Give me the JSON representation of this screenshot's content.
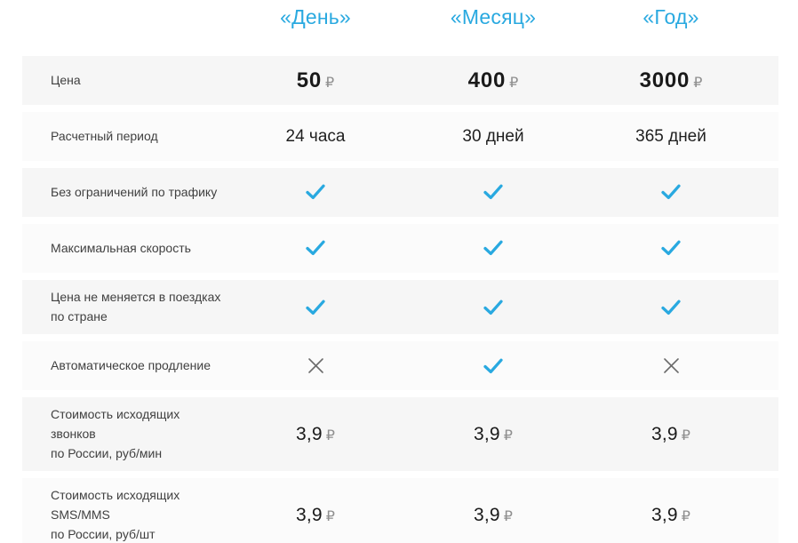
{
  "colors": {
    "page_bg": "#ffffff",
    "accent": "#29a9e0",
    "row_dark": "#f6f6f6",
    "row_light": "#fbfbfb",
    "label_text": "#404040",
    "value_text": "#1f1f1f",
    "price_text": "#1a1a1a",
    "currency_text": "#8f8f8f",
    "cross_color": "#6b6b6b"
  },
  "icons": {
    "check": "check-icon",
    "cross": "cross-icon"
  },
  "table": {
    "columns": [
      {
        "id": "day",
        "label": "«День»"
      },
      {
        "id": "month",
        "label": "«Месяц»"
      },
      {
        "id": "year",
        "label": "«Год»"
      }
    ],
    "rows": [
      {
        "id": "price",
        "label": "Цена",
        "cells": [
          {
            "kind": "price",
            "amount": "50",
            "currency": "₽"
          },
          {
            "kind": "price",
            "amount": "400",
            "currency": "₽"
          },
          {
            "kind": "price",
            "amount": "3000",
            "currency": "₽"
          }
        ]
      },
      {
        "id": "billing-period",
        "label": "Расчетный период",
        "cells": [
          {
            "kind": "text",
            "text": "24 часа"
          },
          {
            "kind": "text",
            "text": "30 дней"
          },
          {
            "kind": "text",
            "text": "365 дней"
          }
        ]
      },
      {
        "id": "unlimited-traffic",
        "label": "Без ограничений по трафику",
        "cells": [
          {
            "kind": "check"
          },
          {
            "kind": "check"
          },
          {
            "kind": "check"
          }
        ]
      },
      {
        "id": "max-speed",
        "label": "Максимальная скорость",
        "cells": [
          {
            "kind": "check"
          },
          {
            "kind": "check"
          },
          {
            "kind": "check"
          }
        ]
      },
      {
        "id": "fixed-price-travel",
        "label": "Цена не меняется в поездках\nпо стране",
        "cells": [
          {
            "kind": "check"
          },
          {
            "kind": "check"
          },
          {
            "kind": "check"
          }
        ]
      },
      {
        "id": "auto-renewal",
        "label": "Автоматическое продление",
        "cells": [
          {
            "kind": "cross"
          },
          {
            "kind": "check"
          },
          {
            "kind": "cross"
          }
        ]
      },
      {
        "id": "outgoing-calls-cost",
        "label": "Стоимость исходящих звонков\nпо России, руб/мин",
        "cells": [
          {
            "kind": "price-small",
            "amount": "3,9",
            "currency": "₽"
          },
          {
            "kind": "price-small",
            "amount": "3,9",
            "currency": "₽"
          },
          {
            "kind": "price-small",
            "amount": "3,9",
            "currency": "₽"
          }
        ]
      },
      {
        "id": "outgoing-sms-cost",
        "label": "Стоимость исходящих SMS/MMS\nпо России, руб/шт",
        "cells": [
          {
            "kind": "price-small",
            "amount": "3,9",
            "currency": "₽"
          },
          {
            "kind": "price-small",
            "amount": "3,9",
            "currency": "₽"
          },
          {
            "kind": "price-small",
            "amount": "3,9",
            "currency": "₽"
          }
        ]
      }
    ]
  }
}
